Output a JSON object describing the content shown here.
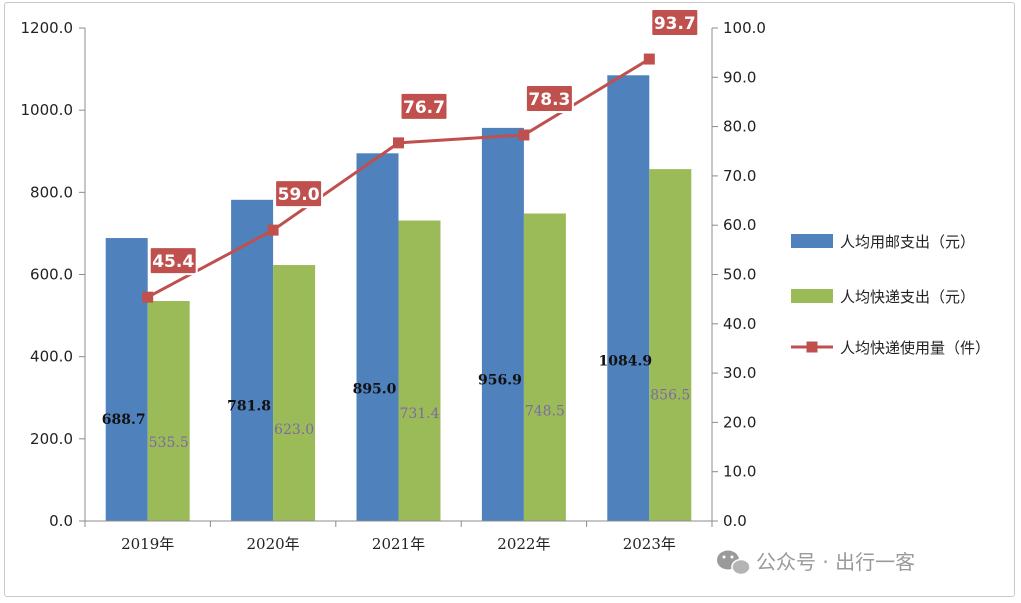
{
  "chart_data": {
    "type": "bar",
    "categories": [
      "2019年",
      "2020年",
      "2021年",
      "2022年",
      "2023年"
    ],
    "series": [
      {
        "name": "人均用邮支出（元）",
        "type": "bar",
        "axis": "left",
        "color": "#4f81bd",
        "values": [
          688.7,
          781.8,
          895.0,
          956.9,
          1084.9
        ],
        "labels": [
          "688.7",
          "781.8",
          "895.0",
          "956.9",
          "1084.9"
        ]
      },
      {
        "name": "人均快递支出（元）",
        "type": "bar",
        "axis": "left",
        "color": "#9bbb59",
        "values": [
          535.5,
          623.0,
          731.4,
          748.5,
          856.5
        ],
        "labels": [
          "535.5",
          "623.0",
          "731.4",
          "748.5",
          "856.5"
        ]
      },
      {
        "name": "人均快递使用量（件）",
        "type": "line",
        "axis": "right",
        "color": "#c0504d",
        "values": [
          45.4,
          59.0,
          76.7,
          78.3,
          93.7
        ],
        "labels": [
          "45.4",
          "59.0",
          "76.7",
          "78.3",
          "93.7"
        ]
      }
    ],
    "ylim_left": [
      0,
      1200
    ],
    "yticks_left": [
      "0.0",
      "200.0",
      "400.0",
      "600.0",
      "800.0",
      "1000.0",
      "1200.0"
    ],
    "ylim_right": [
      0,
      100
    ],
    "yticks_right": [
      "0.0",
      "10.0",
      "20.0",
      "30.0",
      "40.0",
      "50.0",
      "60.0",
      "70.0",
      "80.0",
      "90.0",
      "100.0"
    ],
    "legend_position": "right",
    "grid": false
  },
  "watermark": {
    "text": "公众号 · 出行一客",
    "icon": "wechat-icon"
  }
}
